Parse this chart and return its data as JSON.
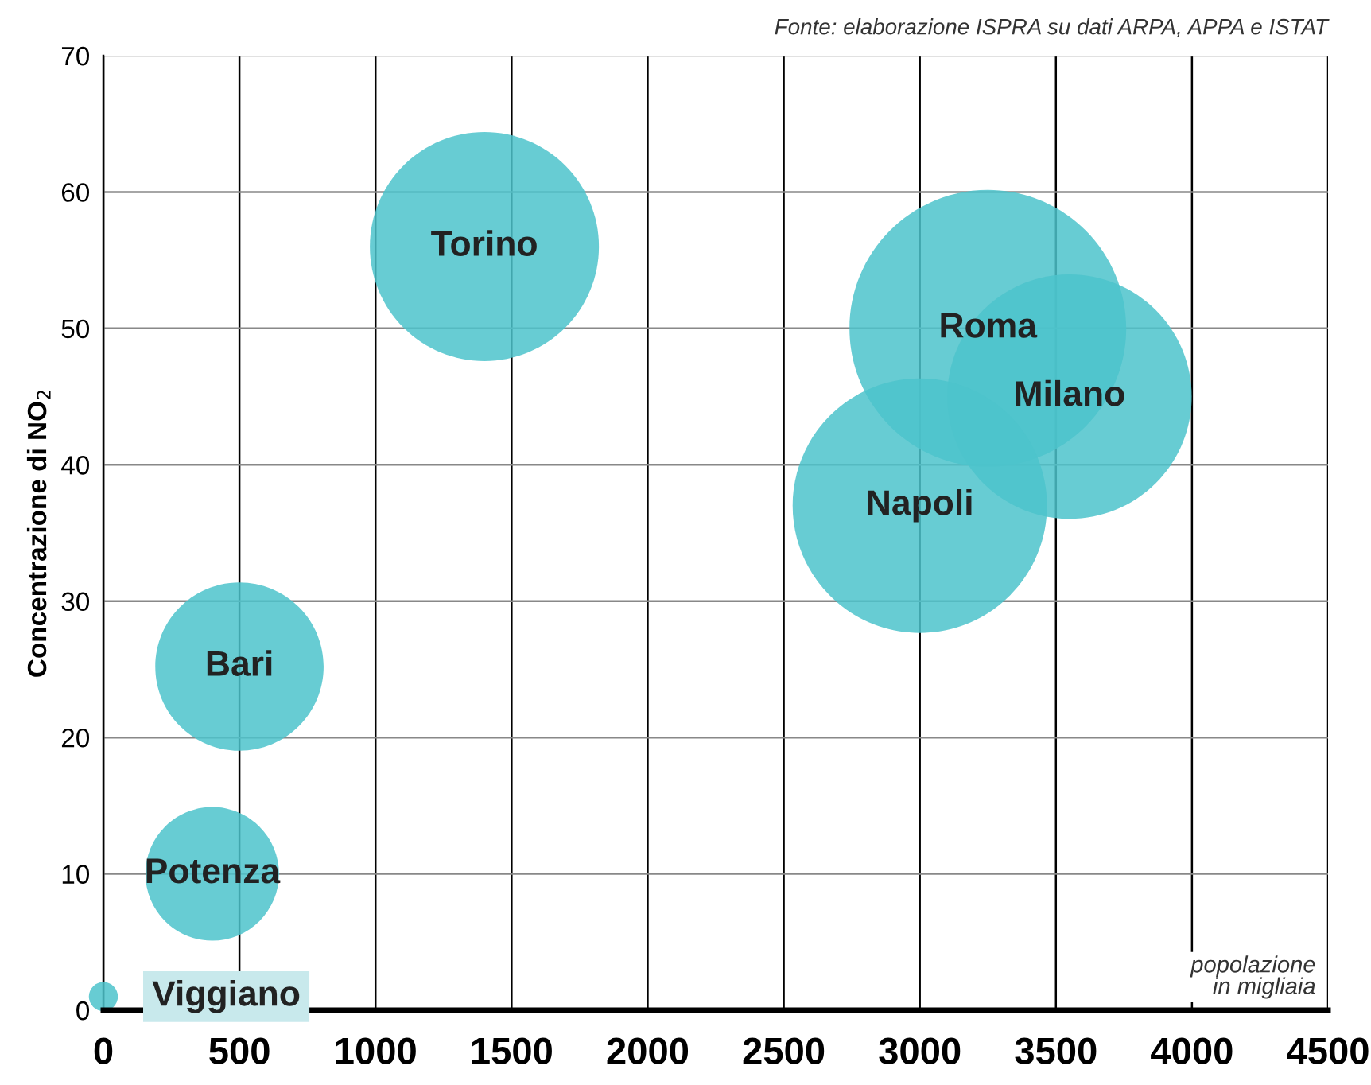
{
  "chart_data": {
    "type": "bubble",
    "ylabel": "Concentrazione di NO$_{2}$",
    "x": [
      1400,
      3250,
      3550,
      3000,
      500,
      400,
      0
    ],
    "values": [
      56,
      50,
      45,
      37,
      25.2,
      10,
      1
    ],
    "sizes": [
      0.685,
      1,
      0.78,
      0.845,
      0.37,
      0.233,
      0.011
    ],
    "color": "#4cc3cb",
    "xlim": [
      0,
      4500
    ],
    "xticks": [
      0,
      500,
      1000,
      1500,
      2000,
      2500,
      3000,
      3500,
      4000,
      4500
    ],
    "ylim": [
      0,
      70
    ],
    "yticks": [
      0,
      10,
      20,
      30,
      40,
      50,
      60,
      70
    ],
    "grid": true,
    "annotations": [
      {
        "text": "Torino",
        "x": 1400,
        "y": 56
      },
      {
        "text": "Roma",
        "x": 3250,
        "y": 50
      },
      {
        "text": "Milano",
        "x": 3550,
        "y": 45
      },
      {
        "text": "Napoli",
        "x": 3000,
        "y": 37
      },
      {
        "text": "Bari",
        "x": 500,
        "y": 25.2
      },
      {
        "text": "Potenza",
        "x": 400,
        "y": 10
      },
      {
        "text": "Viggiano",
        "x": 0,
        "y": 1
      },
      "Fonte: elaborazione ISPRA su dati ARPA, APPA e ISTAT",
      "popolazione\nin migliaia"
    ]
  }
}
